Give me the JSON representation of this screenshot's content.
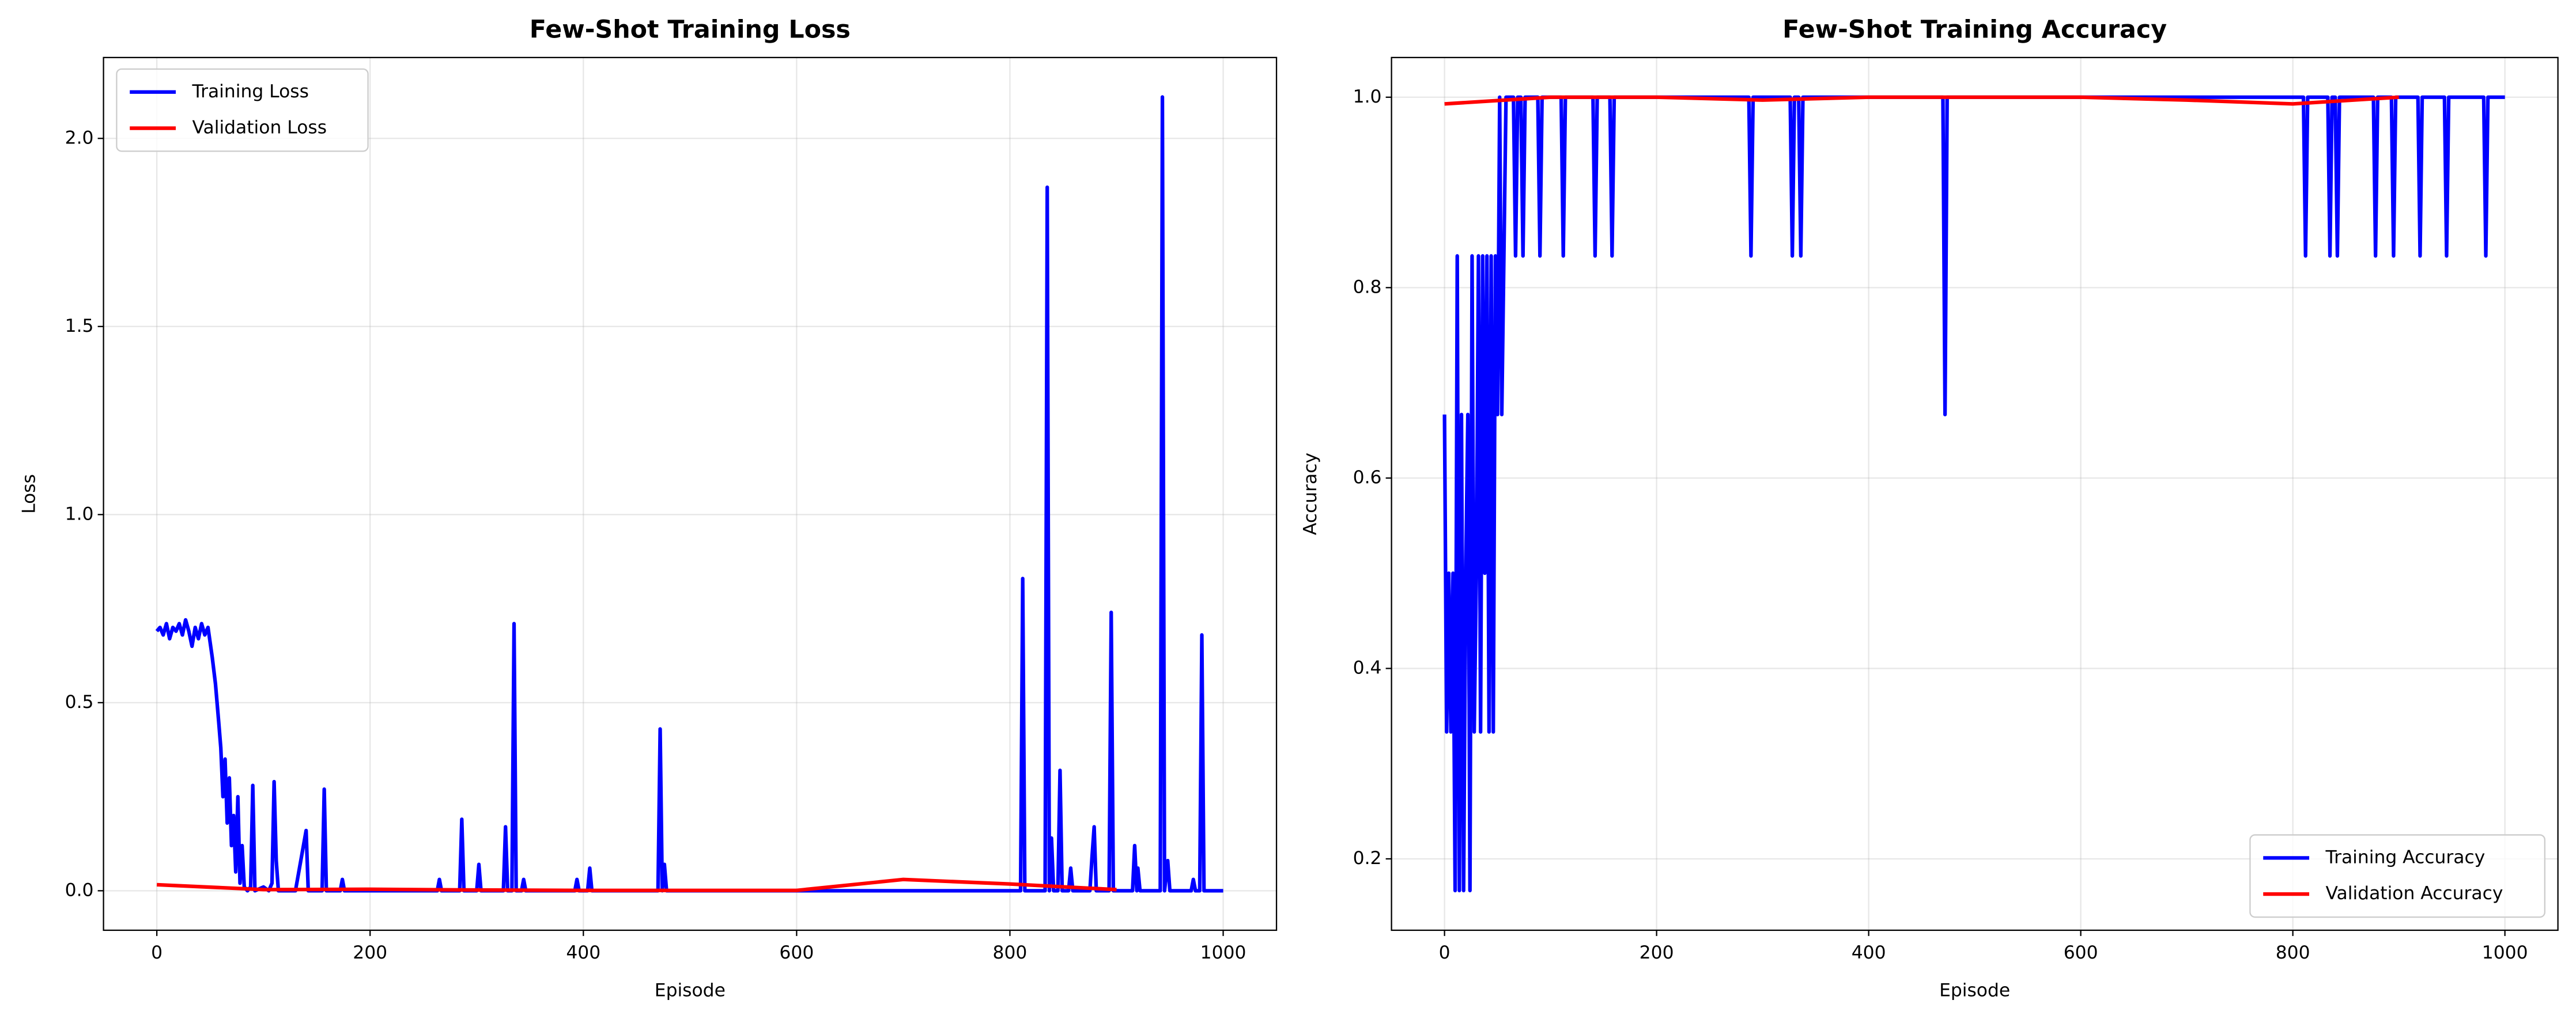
{
  "chart_data": [
    {
      "type": "line",
      "title": "Few-Shot Training Loss",
      "x_label": "Episode",
      "y_label": "Loss",
      "xlim": [
        -50,
        1050
      ],
      "ylim": [
        -0.105,
        2.215
      ],
      "xticks": [
        0,
        200,
        400,
        600,
        800,
        1000
      ],
      "yticks": [
        {
          "value": 0,
          "label": "0.0"
        },
        {
          "value": 0.5,
          "label": "0.5"
        },
        {
          "value": 1,
          "label": "1.0"
        },
        {
          "value": 1.5,
          "label": "1.5"
        },
        {
          "value": 2,
          "label": "2.0"
        }
      ],
      "grid": true,
      "legend": "upper left",
      "series": [
        {
          "name": "Training Loss",
          "color": "#0000ff",
          "x": [
            0,
            3,
            6,
            9,
            12,
            15,
            18,
            21,
            24,
            27,
            30,
            33,
            36,
            39,
            42,
            45,
            48,
            50,
            52,
            55,
            58,
            60,
            62,
            64,
            66,
            68,
            70,
            72,
            74,
            76,
            78,
            80,
            82,
            85,
            88,
            90,
            92,
            100,
            105,
            108,
            110,
            112,
            114,
            130,
            140,
            142,
            155,
            157,
            159,
            172,
            174,
            176,
            263,
            265,
            267,
            284,
            286,
            288,
            300,
            302,
            304,
            325,
            327,
            329,
            333,
            335,
            337,
            342,
            344,
            346,
            392,
            394,
            396,
            404,
            406,
            408,
            470,
            472,
            474,
            476,
            478,
            810,
            812,
            814,
            833,
            835,
            837,
            839,
            841,
            845,
            847,
            849,
            855,
            857,
            859,
            875,
            877,
            879,
            881,
            893,
            895,
            897,
            915,
            917,
            919,
            920,
            922,
            941,
            943,
            945,
            948,
            950,
            970,
            972,
            974,
            978,
            980,
            982,
            1000
          ],
          "values": [
            0.69,
            0.7,
            0.68,
            0.71,
            0.67,
            0.7,
            0.69,
            0.71,
            0.68,
            0.72,
            0.69,
            0.65,
            0.7,
            0.67,
            0.71,
            0.68,
            0.7,
            0.66,
            0.62,
            0.55,
            0.45,
            0.38,
            0.25,
            0.35,
            0.18,
            0.3,
            0.12,
            0.2,
            0.05,
            0.25,
            0.02,
            0.12,
            0.01,
            0,
            0.01,
            0.28,
            0,
            0.01,
            0,
            0.02,
            0.29,
            0.08,
            0,
            0,
            0.16,
            0,
            0,
            0.27,
            0,
            0,
            0.03,
            0,
            0,
            0.03,
            0,
            0,
            0.19,
            0,
            0,
            0.07,
            0,
            0,
            0.17,
            0,
            0,
            0.71,
            0,
            0,
            0.03,
            0,
            0,
            0.03,
            0,
            0,
            0.06,
            0,
            0,
            0.43,
            0,
            0.07,
            0,
            0,
            0.83,
            0,
            0,
            1.87,
            0,
            0.14,
            0,
            0,
            0.32,
            0,
            0,
            0.06,
            0,
            0,
            0.09,
            0.17,
            0,
            0,
            0.74,
            0,
            0,
            0.12,
            0,
            0.06,
            0,
            0,
            2.11,
            0,
            0.08,
            0,
            0,
            0.03,
            0,
            0,
            0.68,
            0,
            0
          ]
        },
        {
          "name": "Validation Loss",
          "color": "#ff0000",
          "x": [
            0,
            100,
            200,
            300,
            400,
            500,
            600,
            700,
            800,
            900
          ],
          "values": [
            0.016,
            0.003,
            0.004,
            0.002,
            0.001,
            0.001,
            0.001,
            0.03,
            0.018,
            0.003
          ]
        }
      ]
    },
    {
      "type": "line",
      "title": "Few-Shot Training Accuracy",
      "x_label": "Episode",
      "y_label": "Accuracy",
      "xlim": [
        -50,
        1050
      ],
      "ylim": [
        0.125,
        1.0417
      ],
      "xticks": [
        0,
        200,
        400,
        600,
        800,
        1000
      ],
      "yticks": [
        0.2,
        0.4,
        0.6,
        0.8,
        {
          "value": 1,
          "label": "1.0"
        }
      ],
      "grid": true,
      "legend": "lower right",
      "series": [
        {
          "name": "Training Accuracy",
          "color": "#0000ff",
          "x": [
            0,
            2,
            4,
            6,
            8,
            10,
            12,
            14,
            16,
            18,
            20,
            22,
            24,
            26,
            28,
            30,
            32,
            34,
            36,
            38,
            40,
            42,
            44,
            46,
            48,
            50,
            52,
            54,
            56,
            58,
            65,
            67,
            69,
            72,
            74,
            76,
            88,
            90,
            92,
            110,
            112,
            114,
            140,
            142,
            144,
            156,
            158,
            160,
            287,
            289,
            291,
            326,
            328,
            330,
            334,
            336,
            338,
            470,
            472,
            474,
            810,
            812,
            814,
            833,
            835,
            837,
            840,
            842,
            844,
            876,
            878,
            880,
            893,
            895,
            897,
            918,
            920,
            922,
            943,
            945,
            947,
            980,
            982,
            984,
            1000
          ],
          "values": [
            0.6667,
            0.3333,
            0.5,
            0.3333,
            0.5,
            0.1667,
            0.8333,
            0.1667,
            0.6667,
            0.1667,
            0.5,
            0.6667,
            0.1667,
            0.8333,
            0.3333,
            0.5,
            0.8333,
            0.3333,
            0.8333,
            0.5,
            0.8333,
            0.3333,
            0.8333,
            0.3333,
            0.8333,
            0.6667,
            1,
            0.6667,
            0.8333,
            1,
            1,
            0.8333,
            1,
            1,
            0.8333,
            1,
            1,
            0.8333,
            1,
            1,
            0.8333,
            1,
            1,
            0.8333,
            1,
            1,
            0.8333,
            1,
            1,
            0.8333,
            1,
            1,
            0.8333,
            1,
            1,
            0.8333,
            1,
            1,
            0.6667,
            1,
            1,
            0.8333,
            1,
            1,
            0.8333,
            1,
            1,
            0.8333,
            1,
            1,
            0.8333,
            1,
            1,
            0.8333,
            1,
            1,
            0.8333,
            1,
            1,
            0.8333,
            1,
            1,
            0.8333,
            1,
            1
          ]
        },
        {
          "name": "Validation Accuracy",
          "color": "#ff0000",
          "x": [
            0,
            100,
            200,
            300,
            400,
            500,
            600,
            700,
            800,
            900
          ],
          "values": [
            0.993,
            1,
            1,
            0.997,
            1,
            1,
            1,
            0.997,
            0.993,
            1
          ]
        }
      ]
    }
  ]
}
